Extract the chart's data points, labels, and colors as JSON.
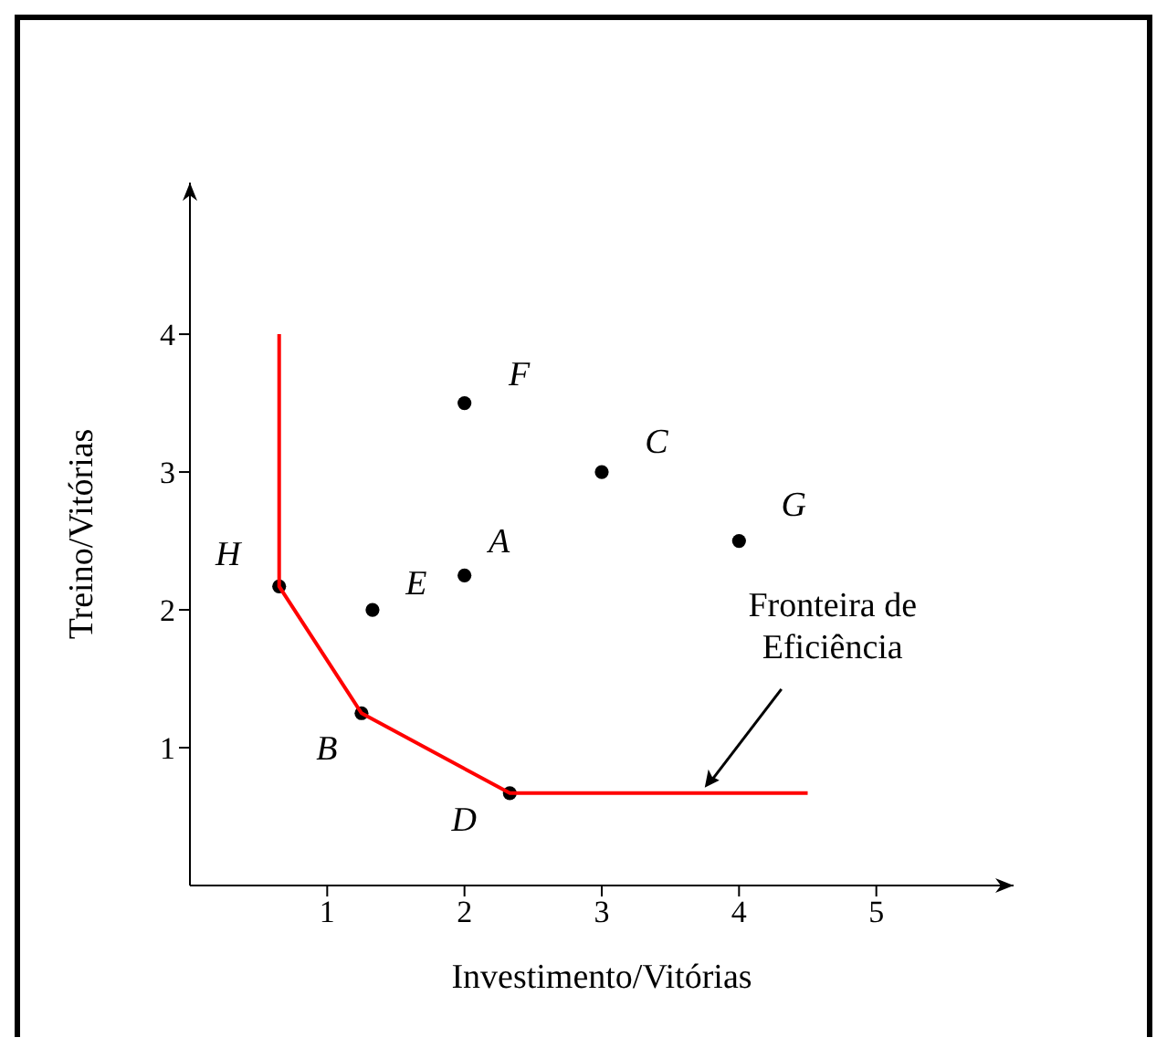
{
  "chart_data": {
    "type": "scatter",
    "xlabel": "Investimento/Vitórias",
    "ylabel": "Treino/Vitórias",
    "xlim": [
      0,
      6
    ],
    "ylim": [
      0,
      5.1
    ],
    "xticks": [
      1,
      2,
      3,
      4,
      5
    ],
    "yticks": [
      1,
      2,
      3,
      4
    ],
    "series": [
      {
        "type": "scatter",
        "color": "#000000",
        "marker": "circle",
        "x": [
          2,
          3,
          2,
          1.25,
          1.33,
          2.33,
          4,
          0.65
        ],
        "values": [
          2.25,
          3,
          3.5,
          1.25,
          2,
          0.67,
          2.5,
          2.17
        ]
      },
      {
        "type": "line",
        "color": "#ff0000",
        "marker": "none",
        "x": [
          0.65,
          0.65,
          1.25,
          2.33,
          4.5
        ],
        "values": [
          4,
          2.17,
          1.25,
          0.67,
          0.67
        ]
      }
    ],
    "annotations": [
      {
        "text": "A",
        "x": 2,
        "y": 2.25
      },
      {
        "text": "C",
        "x": 3,
        "y": 3
      },
      {
        "text": "F",
        "x": 2,
        "y": 3.5
      },
      {
        "text": "B",
        "x": 1.25,
        "y": 1.25
      },
      {
        "text": "E",
        "x": 1.33,
        "y": 2
      },
      {
        "text": "D",
        "x": 2.33,
        "y": 0.67
      },
      {
        "text": "G",
        "x": 4,
        "y": 2.5
      },
      {
        "text": "H",
        "x": 0.65,
        "y": 2.17
      },
      {
        "text": "Fronteira de Eficiência",
        "x": 3.75,
        "y": 0.67
      }
    ]
  }
}
